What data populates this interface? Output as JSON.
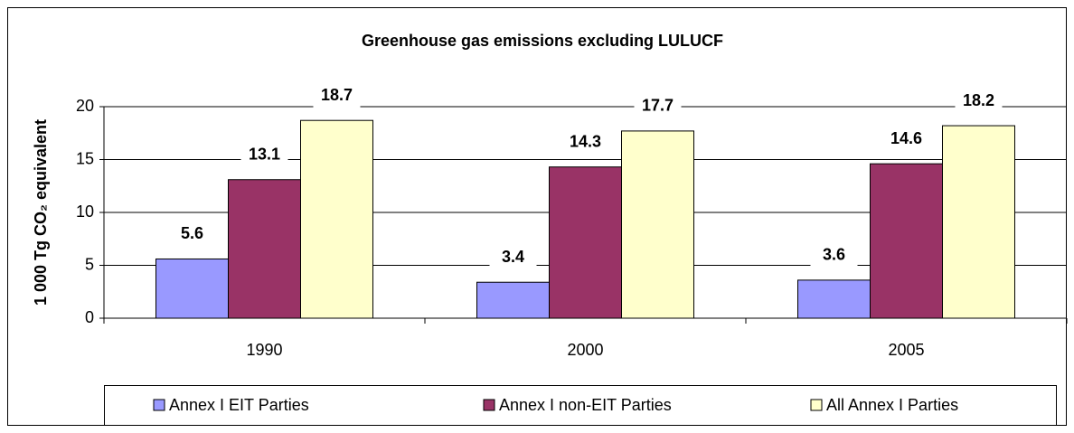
{
  "chart_data": {
    "type": "bar",
    "title": "Greenhouse gas emissions excluding LULUCF",
    "y_label": "1 000 Tg CO₂ equivalent",
    "categories": [
      "1990",
      "2000",
      "2005"
    ],
    "series": [
      {
        "name": "Annex I EIT Parties",
        "color": "#9999ff",
        "values": [
          5.6,
          3.4,
          3.6
        ]
      },
      {
        "name": "Annex I non-EIT Parties",
        "color": "#993366",
        "values": [
          13.1,
          14.3,
          14.6
        ]
      },
      {
        "name": "All Annex I Parties",
        "color": "#ffffcc",
        "values": [
          18.7,
          17.7,
          18.2
        ]
      }
    ],
    "ylim": [
      0,
      20
    ],
    "yticks": [
      0,
      5,
      10,
      15,
      20
    ],
    "grid": true,
    "legend": "bottom"
  }
}
